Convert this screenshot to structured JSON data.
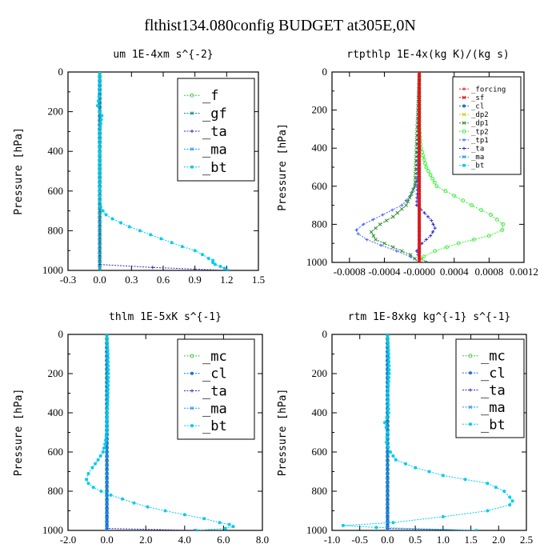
{
  "title": "flthist134.080config  BUDGET at305E,0N",
  "colors": {
    "f": "#33cc33",
    "gf": "#008080",
    "ta": "#2a2ad4",
    "ma": "#1e90ff",
    "bt": "#00ccee",
    "mc": "#33cc33",
    "cl": "#1e6fd8",
    "forcing": "#ee1111",
    "sf": "#cc0000",
    "dp2": "#cccc00",
    "dp1": "#228b22",
    "tp2": "#33ee33",
    "tp1": "#4466ff"
  },
  "chart_data": [
    {
      "type": "line",
      "title": "um   1E-4xm s^{-2}",
      "ylabel": "Pressure [hPa]",
      "xlim": [
        -0.3,
        1.5
      ],
      "ylim": [
        1000,
        0
      ],
      "x_ticks": [
        "-0.3",
        "0.0",
        "0.3",
        "0.6",
        "0.9",
        "1.2",
        "1.5"
      ],
      "y_ticks": [
        "0",
        "200",
        "400",
        "600",
        "800",
        "1000"
      ],
      "legend": [
        "_f",
        "_gf",
        "_ta",
        "_ma",
        "_bt"
      ],
      "legend_position": "top-right",
      "series": [
        {
          "name": "_f",
          "color_key": "f",
          "p": [
            0,
            1000
          ],
          "x": [
            0.0,
            0.0
          ]
        },
        {
          "name": "_gf",
          "color_key": "gf",
          "p": [
            0,
            1000
          ],
          "x": [
            0.0,
            0.0
          ]
        },
        {
          "name": "_ta",
          "color_key": "ta",
          "p": [
            0,
            970,
            985,
            1000
          ],
          "x": [
            0.0,
            0.0,
            0.5,
            1.2
          ]
        },
        {
          "name": "_ma",
          "color_key": "ma",
          "p": [
            0,
            1000
          ],
          "x": [
            0.0,
            0.0
          ]
        },
        {
          "name": "_bt",
          "color_key": "bt",
          "p": [
            0,
            100,
            170,
            200,
            220,
            300,
            400,
            500,
            600,
            650,
            680,
            700,
            720,
            740,
            760,
            780,
            800,
            820,
            840,
            860,
            880,
            900,
            920,
            940,
            950,
            960,
            970,
            980,
            990,
            1000
          ],
          "x": [
            0.0,
            0.0,
            -0.02,
            0.0,
            0.02,
            0.0,
            0.0,
            0.0,
            0.0,
            0.0,
            0.01,
            0.03,
            0.06,
            0.12,
            0.2,
            0.28,
            0.38,
            0.48,
            0.58,
            0.68,
            0.78,
            0.9,
            0.97,
            1.03,
            1.07,
            1.07,
            1.09,
            1.14,
            1.18,
            1.21
          ]
        }
      ]
    },
    {
      "type": "line",
      "title": "rtpthlp   1E-4x(kg K)/(kg s)",
      "ylabel": "Pressure [hPa]",
      "xlim": [
        -0.001,
        0.0012
      ],
      "ylim": [
        1000,
        0
      ],
      "x_ticks": [
        "-0.0008",
        "-0.0004",
        "-0.0000",
        "0.0004",
        "0.0008",
        "0.0012"
      ],
      "y_ticks": [
        "0",
        "200",
        "400",
        "600",
        "800",
        "1000"
      ],
      "legend": [
        "_forcing",
        "_sf",
        "_cl",
        "_dp2",
        "_dp1",
        "_tp2",
        "_tp1",
        "_ta",
        "_ma",
        "_bt"
      ],
      "legend_position": "top-right",
      "series": [
        {
          "name": "_tp2",
          "color_key": "tp2",
          "p": [
            0,
            300,
            400,
            500,
            600,
            650,
            700,
            750,
            800,
            830,
            860,
            900,
            940,
            970,
            1000
          ],
          "x": [
            0.0,
            0.0,
            2e-05,
            8e-05,
            0.0002,
            0.0004,
            0.0006,
            0.00082,
            0.00096,
            0.00095,
            0.0008,
            0.00045,
            0.00018,
            5e-05,
            0.0
          ]
        },
        {
          "name": "_tp1",
          "color_key": "tp1",
          "p": [
            0,
            550,
            650,
            700,
            750,
            800,
            830,
            850,
            880,
            910,
            940,
            970,
            1000
          ],
          "x": [
            0.0,
            -1e-05,
            -0.0001,
            -0.0002,
            -0.00042,
            -0.00064,
            -0.00072,
            -0.0007,
            -0.0006,
            -0.00044,
            -0.00026,
            -0.0001,
            0.0
          ]
        },
        {
          "name": "_dp1",
          "color_key": "dp1",
          "p": [
            0,
            600,
            700,
            760,
            800,
            840,
            880,
            920,
            960,
            1000
          ],
          "x": [
            0.0,
            -5e-05,
            -0.00015,
            -0.0003,
            -0.00045,
            -0.00055,
            -0.0005,
            -0.0003,
            -0.0001,
            0.0
          ]
        },
        {
          "name": "_ta",
          "color_key": "ta",
          "p": [
            0,
            600,
            700,
            740,
            780,
            820,
            860,
            900,
            940,
            980,
            1000
          ],
          "x": [
            0.0,
            -2e-05,
            -3e-05,
            6e-05,
            0.00014,
            0.00018,
            0.00013,
            3e-05,
            -3e-05,
            0.0,
            0.0
          ]
        },
        {
          "name": "_dp2",
          "color_key": "dp2",
          "p": [
            0,
            960,
            1000
          ],
          "x": [
            0.0,
            0.0,
            5e-05
          ]
        },
        {
          "name": "_cl",
          "color_key": "cl",
          "p": [
            0,
            970,
            1000
          ],
          "x": [
            0.0,
            0.0,
            8e-05
          ]
        },
        {
          "name": "_ma",
          "color_key": "ma",
          "p": [
            0,
            1000
          ],
          "x": [
            0.0,
            0.0
          ]
        },
        {
          "name": "_bt",
          "color_key": "bt",
          "p": [
            0,
            1000
          ],
          "x": [
            0.0,
            0.0
          ]
        },
        {
          "name": "_sf",
          "color_key": "sf",
          "p": [
            0,
            1000
          ],
          "x": [
            0.0,
            0.0
          ]
        },
        {
          "name": "_forcing",
          "color_key": "forcing",
          "p": [
            0,
            1000
          ],
          "x": [
            0.0,
            0.0
          ]
        }
      ]
    },
    {
      "type": "line",
      "title": "thlm   1E-5xK s^{-1}",
      "ylabel": "Pressure [hPa]",
      "xlim": [
        -2.0,
        8.0
      ],
      "ylim": [
        1000,
        0
      ],
      "x_ticks": [
        "-2.0",
        "0.0",
        "2.0",
        "4.0",
        "6.0",
        "8.0"
      ],
      "y_ticks": [
        "0",
        "200",
        "400",
        "600",
        "800",
        "1000"
      ],
      "legend": [
        "_mc",
        "_cl",
        "_ta",
        "_ma",
        "_bt"
      ],
      "legend_position": "top-right",
      "series": [
        {
          "name": "_mc",
          "color_key": "mc",
          "p": [
            0,
            1000
          ],
          "x": [
            0.0,
            0.0
          ]
        },
        {
          "name": "_cl",
          "color_key": "cl",
          "p": [
            0,
            1000
          ],
          "x": [
            0.0,
            0.0
          ]
        },
        {
          "name": "_ta",
          "color_key": "ta",
          "p": [
            0,
            990,
            1000
          ],
          "x": [
            0.0,
            0.0,
            4.5
          ]
        },
        {
          "name": "_ma",
          "color_key": "ma",
          "p": [
            0,
            1000
          ],
          "x": [
            0.0,
            0.0
          ]
        },
        {
          "name": "_bt",
          "color_key": "bt",
          "p": [
            0,
            100,
            200,
            300,
            400,
            500,
            560,
            600,
            640,
            680,
            710,
            740,
            760,
            780,
            800,
            820,
            840,
            860,
            880,
            900,
            920,
            940,
            960,
            970,
            980,
            990,
            1000
          ],
          "x": [
            0.0,
            0.05,
            0.08,
            0.05,
            0.03,
            0.0,
            -0.1,
            -0.2,
            -0.45,
            -0.75,
            -0.95,
            -1.05,
            -0.95,
            -0.7,
            -0.3,
            0.2,
            0.8,
            1.4,
            2.1,
            3.0,
            4.0,
            5.0,
            5.8,
            6.3,
            6.5,
            6.1,
            4.6
          ]
        }
      ]
    },
    {
      "type": "line",
      "title": "rtm   1E-8xkg kg^{-1} s^{-1}",
      "ylabel": "Pressure [hPa]",
      "xlim": [
        -1.0,
        2.5
      ],
      "ylim": [
        1000,
        0
      ],
      "x_ticks": [
        "-1.0",
        "-0.5",
        "0.0",
        "0.5",
        "1.0",
        "1.5",
        "2.0",
        "2.5"
      ],
      "y_ticks": [
        "0",
        "200",
        "400",
        "600",
        "800",
        "1000"
      ],
      "legend": [
        "_mc",
        "_cl",
        "_ta",
        "_ma",
        "_bt"
      ],
      "legend_position": "top-right",
      "series": [
        {
          "name": "_mc",
          "color_key": "mc",
          "p": [
            0,
            1000
          ],
          "x": [
            0.0,
            0.0
          ]
        },
        {
          "name": "_cl",
          "color_key": "cl",
          "p": [
            0,
            1000
          ],
          "x": [
            0.0,
            0.0
          ]
        },
        {
          "name": "_ta",
          "color_key": "ta",
          "p": [
            0,
            990,
            1000
          ],
          "x": [
            0.0,
            0.0,
            1.6
          ]
        },
        {
          "name": "_ma",
          "color_key": "ma",
          "p": [
            0,
            1000
          ],
          "x": [
            0.0,
            0.0
          ]
        },
        {
          "name": "_bt",
          "color_key": "bt",
          "p": [
            0,
            100,
            200,
            300,
            400,
            450,
            500,
            550,
            600,
            640,
            680,
            720,
            760,
            800,
            830,
            850,
            870,
            900,
            930,
            960,
            975,
            985,
            1000
          ],
          "x": [
            0.0,
            0.02,
            0.03,
            0.0,
            0.02,
            -0.05,
            0.0,
            -0.02,
            0.05,
            0.15,
            0.5,
            1.0,
            1.8,
            2.1,
            2.2,
            2.25,
            2.2,
            1.8,
            1.0,
            0.1,
            -0.8,
            -0.2,
            1.6
          ]
        }
      ]
    }
  ]
}
